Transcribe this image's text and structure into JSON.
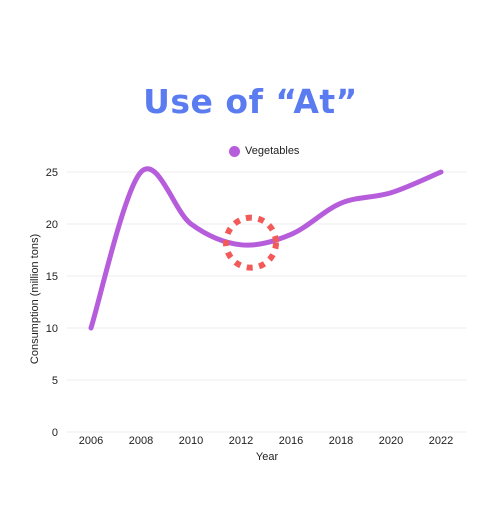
{
  "chart_data": {
    "type": "line",
    "title": "Use of “At”",
    "xlabel": "Year",
    "ylabel": "Consumption (million tons)",
    "x_ticks": [
      "2006",
      "2008",
      "2010",
      "2012",
      "2016",
      "2018",
      "2020",
      "2022"
    ],
    "y_ticks": [
      0,
      5,
      10,
      15,
      20,
      25
    ],
    "ylim": [
      0,
      25
    ],
    "grid": true,
    "legend_position": "top-center",
    "series": [
      {
        "name": "Vegetables",
        "x": [
          "2006",
          "2008",
          "2010",
          "2012",
          "2016",
          "2018",
          "2020",
          "2022"
        ],
        "values": [
          10,
          25,
          20,
          18,
          19,
          22,
          23,
          25
        ]
      }
    ],
    "annotation": {
      "type": "dotted-circle",
      "x": "2012",
      "y": 18.3
    }
  },
  "colors": {
    "title": "#5b7cf0",
    "series": "#b65ddb",
    "annotation": "#f25a5a",
    "grid": "#eeeeee"
  }
}
